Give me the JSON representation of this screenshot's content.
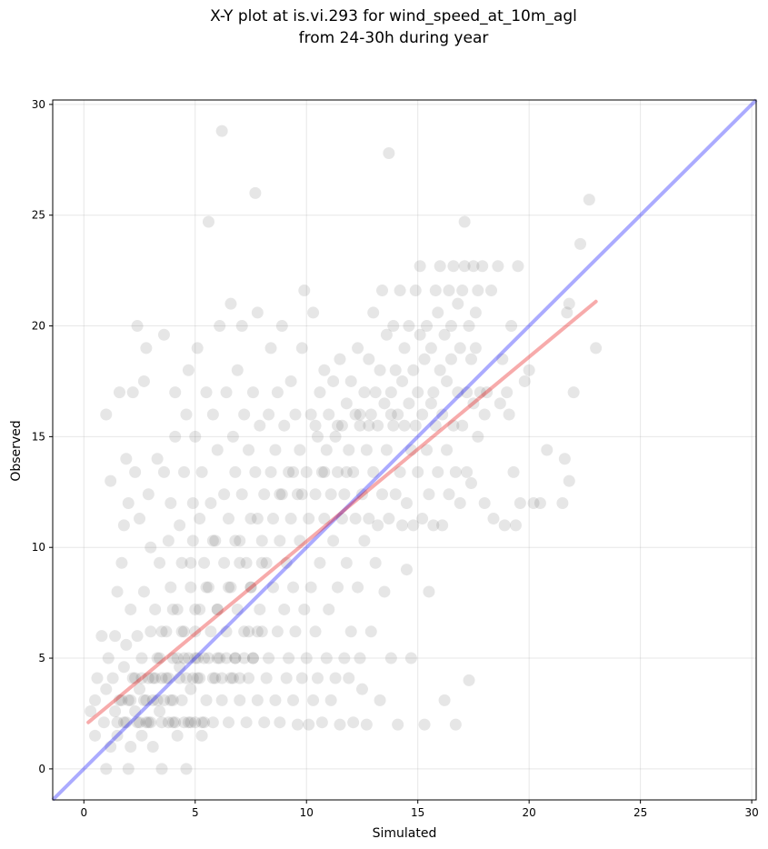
{
  "chart_data": {
    "type": "scatter",
    "title": [
      "X-Y plot at is.vi.293 for wind_speed_at_10m_agl",
      "from 24-30h during year"
    ],
    "xlabel": "Simulated",
    "ylabel": "Observed",
    "xlim": [
      -1.4,
      30.2
    ],
    "ylim": [
      -1.4,
      30.2
    ],
    "x_ticks": [
      0,
      5,
      10,
      15,
      20,
      25,
      30
    ],
    "y_ticks": [
      0,
      5,
      10,
      15,
      20,
      25,
      30
    ],
    "grid": true,
    "point_color": "#333333",
    "identity_line": {
      "x": [
        -1.4,
        30.2
      ],
      "y": [
        -1.4,
        30.2
      ],
      "color": "#0000ff"
    },
    "regression_line": {
      "x": [
        0.2,
        23.0
      ],
      "y": [
        2.1,
        21.1
      ],
      "color": "#e60000"
    },
    "points": [
      [
        0.3,
        2.6
      ],
      [
        0.5,
        1.5
      ],
      [
        0.5,
        3.1
      ],
      [
        0.6,
        4.1
      ],
      [
        0.8,
        6.0
      ],
      [
        0.9,
        2.1
      ],
      [
        1.0,
        3.6
      ],
      [
        1.0,
        16.0
      ],
      [
        1.0,
        0.0
      ],
      [
        1.1,
        5.0
      ],
      [
        1.2,
        1.0
      ],
      [
        1.2,
        13.0
      ],
      [
        1.3,
        4.1
      ],
      [
        1.4,
        2.6
      ],
      [
        1.4,
        6.0
      ],
      [
        1.5,
        8.0
      ],
      [
        1.5,
        1.5
      ],
      [
        1.6,
        3.1
      ],
      [
        1.6,
        17.0
      ],
      [
        1.7,
        9.3
      ],
      [
        1.8,
        2.1
      ],
      [
        1.8,
        4.6
      ],
      [
        1.8,
        11.0
      ],
      [
        1.9,
        14.0
      ],
      [
        1.9,
        5.6
      ],
      [
        2.0,
        12.0
      ],
      [
        2.0,
        3.1
      ],
      [
        2.0,
        0.0
      ],
      [
        2.1,
        1.0
      ],
      [
        2.1,
        7.2
      ],
      [
        2.2,
        4.1
      ],
      [
        2.2,
        17.0
      ],
      [
        2.3,
        2.6
      ],
      [
        2.3,
        13.4
      ],
      [
        2.4,
        6.0
      ],
      [
        2.4,
        20.0
      ],
      [
        2.5,
        3.6
      ],
      [
        2.5,
        11.3
      ],
      [
        2.6,
        5.0
      ],
      [
        2.6,
        1.5
      ],
      [
        2.7,
        8.0
      ],
      [
        2.7,
        17.5
      ],
      [
        2.8,
        19.0
      ],
      [
        2.8,
        2.1
      ],
      [
        2.9,
        4.1
      ],
      [
        2.9,
        12.4
      ],
      [
        3.0,
        6.2
      ],
      [
        3.0,
        10.0
      ],
      [
        3.1,
        3.1
      ],
      [
        3.1,
        1.0
      ],
      [
        3.2,
        7.2
      ],
      [
        3.3,
        5.0
      ],
      [
        3.3,
        14.0
      ],
      [
        3.4,
        2.6
      ],
      [
        3.4,
        9.3
      ],
      [
        3.5,
        4.1
      ],
      [
        3.5,
        0.0
      ],
      [
        3.6,
        13.4
      ],
      [
        3.6,
        19.6
      ],
      [
        3.7,
        6.2
      ],
      [
        3.8,
        2.1
      ],
      [
        3.8,
        10.3
      ],
      [
        3.9,
        8.2
      ],
      [
        3.9,
        12.0
      ],
      [
        4.0,
        5.0
      ],
      [
        4.0,
        3.1
      ],
      [
        4.1,
        15.0
      ],
      [
        4.1,
        17.0
      ],
      [
        4.2,
        7.2
      ],
      [
        4.2,
        1.5
      ],
      [
        4.3,
        11.0
      ],
      [
        4.3,
        4.6
      ],
      [
        4.4,
        6.2
      ],
      [
        4.4,
        9.3
      ],
      [
        4.5,
        2.1
      ],
      [
        4.5,
        13.4
      ],
      [
        4.6,
        16.0
      ],
      [
        4.6,
        0.0
      ],
      [
        4.7,
        5.0
      ],
      [
        4.7,
        18.0
      ],
      [
        4.8,
        3.6
      ],
      [
        4.8,
        8.2
      ],
      [
        4.9,
        12.0
      ],
      [
        4.9,
        10.3
      ],
      [
        5.0,
        6.2
      ],
      [
        5.0,
        2.1
      ],
      [
        5.0,
        15.0
      ],
      [
        5.1,
        4.1
      ],
      [
        5.1,
        19.0
      ],
      [
        5.2,
        7.2
      ],
      [
        5.2,
        11.3
      ],
      [
        5.3,
        1.5
      ],
      [
        5.3,
        13.4
      ],
      [
        5.4,
        5.0
      ],
      [
        5.4,
        9.3
      ],
      [
        5.5,
        3.1
      ],
      [
        5.5,
        17.0
      ],
      [
        5.6,
        8.2
      ],
      [
        5.6,
        24.7
      ],
      [
        5.7,
        6.2
      ],
      [
        5.7,
        12.0
      ],
      [
        5.8,
        2.1
      ],
      [
        5.8,
        16.0
      ],
      [
        5.9,
        4.1
      ],
      [
        5.9,
        10.3
      ],
      [
        6.0,
        7.2
      ],
      [
        6.0,
        14.4
      ],
      [
        6.1,
        5.0
      ],
      [
        6.1,
        20.0
      ],
      [
        6.2,
        3.1
      ],
      [
        6.2,
        28.8
      ],
      [
        6.3,
        9.3
      ],
      [
        6.3,
        12.4
      ],
      [
        6.4,
        6.2
      ],
      [
        6.4,
        17.0
      ],
      [
        6.5,
        2.1
      ],
      [
        6.5,
        11.3
      ],
      [
        6.6,
        8.2
      ],
      [
        6.6,
        21.0
      ],
      [
        6.7,
        4.1
      ],
      [
        6.7,
        15.0
      ],
      [
        6.8,
        5.0
      ],
      [
        6.8,
        13.4
      ],
      [
        6.9,
        7.2
      ],
      [
        6.9,
        18.0
      ],
      [
        7.0,
        3.1
      ],
      [
        7.0,
        10.3
      ],
      [
        7.1,
        12.4
      ],
      [
        7.1,
        20.0
      ],
      [
        7.2,
        6.2
      ],
      [
        7.2,
        16.0
      ],
      [
        7.3,
        2.1
      ],
      [
        7.3,
        9.3
      ],
      [
        7.4,
        4.1
      ],
      [
        7.4,
        14.4
      ],
      [
        7.5,
        8.2
      ],
      [
        7.5,
        11.3
      ],
      [
        7.6,
        5.0
      ],
      [
        7.6,
        17.0
      ],
      [
        7.7,
        26.0
      ],
      [
        7.7,
        13.4
      ],
      [
        7.8,
        3.1
      ],
      [
        7.8,
        20.6
      ],
      [
        7.9,
        7.2
      ],
      [
        7.9,
        15.5
      ],
      [
        8.0,
        10.3
      ],
      [
        8.0,
        6.2
      ],
      [
        8.1,
        2.1
      ],
      [
        8.1,
        12.4
      ],
      [
        8.2,
        4.1
      ],
      [
        8.2,
        9.3
      ],
      [
        8.3,
        16.0
      ],
      [
        8.3,
        5.0
      ],
      [
        8.4,
        13.4
      ],
      [
        8.4,
        19.0
      ],
      [
        8.5,
        8.2
      ],
      [
        8.5,
        11.3
      ],
      [
        8.6,
        3.1
      ],
      [
        8.6,
        14.4
      ],
      [
        8.7,
        6.2
      ],
      [
        8.7,
        17.0
      ],
      [
        8.8,
        2.1
      ],
      [
        8.8,
        10.3
      ],
      [
        8.9,
        12.4
      ],
      [
        8.9,
        20.0
      ],
      [
        9.0,
        7.2
      ],
      [
        9.0,
        15.5
      ],
      [
        9.1,
        4.1
      ],
      [
        9.1,
        9.3
      ],
      [
        9.2,
        5.0
      ],
      [
        9.2,
        13.4
      ],
      [
        9.3,
        11.3
      ],
      [
        9.3,
        17.5
      ],
      [
        9.4,
        3.1
      ],
      [
        9.4,
        8.2
      ],
      [
        9.5,
        16.0
      ],
      [
        9.5,
        6.2
      ],
      [
        9.6,
        2.0
      ],
      [
        9.6,
        12.4
      ],
      [
        9.7,
        10.3
      ],
      [
        9.7,
        14.4
      ],
      [
        9.8,
        4.1
      ],
      [
        9.8,
        19.0
      ],
      [
        9.9,
        7.2
      ],
      [
        9.9,
        21.6
      ],
      [
        10.0,
        5.0
      ],
      [
        10.0,
        13.4
      ],
      [
        10.1,
        2.0
      ],
      [
        10.1,
        11.3
      ],
      [
        10.2,
        16.0
      ],
      [
        10.2,
        8.2
      ],
      [
        10.3,
        3.1
      ],
      [
        10.3,
        20.6
      ],
      [
        10.4,
        12.4
      ],
      [
        10.4,
        6.2
      ],
      [
        10.5,
        15.0
      ],
      [
        10.5,
        4.1
      ],
      [
        10.6,
        17.0
      ],
      [
        10.6,
        9.3
      ],
      [
        10.7,
        13.4
      ],
      [
        10.7,
        2.1
      ],
      [
        10.8,
        11.3
      ],
      [
        10.8,
        18.0
      ],
      [
        10.9,
        5.0
      ],
      [
        10.9,
        14.4
      ],
      [
        11.0,
        7.2
      ],
      [
        11.0,
        16.0
      ],
      [
        11.1,
        3.1
      ],
      [
        11.1,
        12.4
      ],
      [
        11.2,
        10.3
      ],
      [
        11.2,
        17.5
      ],
      [
        11.3,
        4.1
      ],
      [
        11.3,
        15.0
      ],
      [
        11.4,
        13.4
      ],
      [
        11.4,
        8.2
      ],
      [
        11.5,
        2.0
      ],
      [
        11.5,
        18.5
      ],
      [
        11.6,
        11.3
      ],
      [
        11.6,
        15.5
      ],
      [
        11.7,
        5.0
      ],
      [
        11.7,
        12.4
      ],
      [
        11.8,
        9.3
      ],
      [
        11.8,
        16.5
      ],
      [
        11.9,
        4.1
      ],
      [
        11.9,
        14.4
      ],
      [
        12.0,
        6.2
      ],
      [
        12.0,
        17.5
      ],
      [
        12.1,
        13.4
      ],
      [
        12.1,
        2.1
      ],
      [
        12.2,
        11.3
      ],
      [
        12.2,
        16.0
      ],
      [
        12.3,
        8.2
      ],
      [
        12.3,
        19.0
      ],
      [
        12.4,
        5.0
      ],
      [
        12.4,
        15.5
      ],
      [
        12.5,
        12.4
      ],
      [
        12.5,
        3.6
      ],
      [
        12.6,
        17.0
      ],
      [
        12.6,
        10.3
      ],
      [
        12.7,
        14.4
      ],
      [
        12.7,
        2.0
      ],
      [
        12.8,
        18.5
      ],
      [
        12.8,
        11.3
      ],
      [
        12.9,
        16.0
      ],
      [
        12.9,
        6.2
      ],
      [
        13.0,
        13.4
      ],
      [
        13.0,
        20.6
      ],
      [
        13.1,
        9.3
      ],
      [
        13.1,
        17.0
      ],
      [
        13.2,
        15.5
      ],
      [
        13.2,
        11.0
      ],
      [
        13.3,
        3.1
      ],
      [
        13.3,
        18.0
      ],
      [
        13.4,
        12.4
      ],
      [
        13.4,
        21.6
      ],
      [
        13.5,
        16.5
      ],
      [
        13.5,
        8.0
      ],
      [
        13.6,
        14.4
      ],
      [
        13.6,
        19.6
      ],
      [
        13.7,
        27.8
      ],
      [
        13.7,
        11.3
      ],
      [
        13.8,
        17.0
      ],
      [
        13.8,
        5.0
      ],
      [
        13.9,
        15.5
      ],
      [
        13.9,
        20.0
      ],
      [
        14.0,
        12.4
      ],
      [
        14.0,
        18.0
      ],
      [
        14.1,
        16.0
      ],
      [
        14.1,
        2.0
      ],
      [
        14.2,
        13.4
      ],
      [
        14.2,
        21.6
      ],
      [
        14.3,
        11.0
      ],
      [
        14.3,
        17.5
      ],
      [
        14.4,
        19.0
      ],
      [
        14.4,
        15.5
      ],
      [
        14.5,
        9.0
      ],
      [
        14.5,
        12.0
      ],
      [
        14.6,
        16.5
      ],
      [
        14.6,
        20.0
      ],
      [
        14.7,
        14.4
      ],
      [
        14.7,
        5.0
      ],
      [
        14.8,
        18.0
      ],
      [
        14.8,
        11.0
      ],
      [
        14.9,
        15.5
      ],
      [
        14.9,
        21.6
      ],
      [
        15.0,
        13.4
      ],
      [
        15.0,
        17.0
      ],
      [
        15.1,
        19.6
      ],
      [
        15.1,
        22.7
      ],
      [
        15.2,
        11.3
      ],
      [
        15.2,
        16.0
      ],
      [
        15.3,
        2.0
      ],
      [
        15.3,
        18.5
      ],
      [
        15.4,
        14.4
      ],
      [
        15.4,
        20.0
      ],
      [
        15.5,
        12.4
      ],
      [
        15.5,
        8.0
      ],
      [
        15.6,
        16.5
      ],
      [
        15.6,
        19.0
      ],
      [
        15.7,
        11.0
      ],
      [
        15.7,
        17.0
      ],
      [
        15.8,
        21.6
      ],
      [
        15.8,
        15.5
      ],
      [
        15.9,
        20.6
      ],
      [
        15.9,
        13.4
      ],
      [
        16.0,
        18.0
      ],
      [
        16.0,
        22.7
      ],
      [
        16.1,
        11.0
      ],
      [
        16.1,
        16.0
      ],
      [
        16.2,
        19.6
      ],
      [
        16.2,
        3.1
      ],
      [
        16.3,
        14.4
      ],
      [
        16.3,
        17.5
      ],
      [
        16.4,
        21.6
      ],
      [
        16.4,
        12.4
      ],
      [
        16.5,
        18.5
      ],
      [
        16.5,
        20.0
      ],
      [
        16.6,
        15.5
      ],
      [
        16.6,
        22.7
      ],
      [
        16.7,
        13.4
      ],
      [
        16.7,
        2.0
      ],
      [
        16.8,
        21.0
      ],
      [
        16.8,
        17.0
      ],
      [
        16.9,
        12.0
      ],
      [
        16.9,
        19.0
      ],
      [
        17.0,
        21.6
      ],
      [
        17.0,
        15.5
      ],
      [
        17.1,
        22.7
      ],
      [
        17.1,
        24.7
      ],
      [
        17.2,
        13.4
      ],
      [
        17.2,
        17.0
      ],
      [
        17.3,
        20.0
      ],
      [
        17.3,
        4.0
      ],
      [
        17.4,
        12.9
      ],
      [
        17.4,
        18.5
      ],
      [
        17.5,
        22.7
      ],
      [
        17.5,
        16.5
      ],
      [
        17.6,
        19.0
      ],
      [
        17.6,
        20.6
      ],
      [
        17.7,
        15.0
      ],
      [
        17.7,
        21.6
      ],
      [
        17.8,
        17.0
      ],
      [
        17.9,
        22.7
      ],
      [
        18.0,
        16.0
      ],
      [
        18.0,
        12.0
      ],
      [
        18.1,
        17.0
      ],
      [
        18.3,
        21.6
      ],
      [
        18.4,
        11.3
      ],
      [
        18.6,
        22.7
      ],
      [
        18.7,
        16.5
      ],
      [
        18.8,
        18.5
      ],
      [
        18.9,
        11.0
      ],
      [
        19.0,
        17.0
      ],
      [
        19.1,
        16.0
      ],
      [
        19.2,
        20.0
      ],
      [
        19.3,
        13.4
      ],
      [
        19.4,
        11.0
      ],
      [
        19.5,
        22.7
      ],
      [
        19.6,
        12.0
      ],
      [
        19.8,
        17.5
      ],
      [
        20.0,
        18.0
      ],
      [
        20.2,
        12.0
      ],
      [
        20.5,
        12.0
      ],
      [
        20.8,
        14.4
      ],
      [
        21.5,
        12.0
      ],
      [
        21.6,
        14.0
      ],
      [
        21.7,
        20.6
      ],
      [
        21.8,
        13.0
      ],
      [
        21.8,
        21.0
      ],
      [
        22.0,
        17.0
      ],
      [
        22.3,
        23.7
      ],
      [
        22.7,
        25.7
      ],
      [
        23.0,
        19.0
      ],
      [
        1.5,
        2.1
      ],
      [
        1.7,
        3.1
      ],
      [
        1.9,
        2.1
      ],
      [
        2.1,
        3.1
      ],
      [
        2.3,
        4.1
      ],
      [
        2.5,
        2.1
      ],
      [
        2.7,
        3.1
      ],
      [
        2.9,
        2.1
      ],
      [
        3.1,
        4.1
      ],
      [
        3.3,
        3.1
      ],
      [
        3.5,
        2.1
      ],
      [
        3.7,
        4.1
      ],
      [
        3.9,
        3.1
      ],
      [
        4.1,
        2.1
      ],
      [
        4.3,
        4.1
      ],
      [
        4.5,
        5.0
      ],
      [
        4.7,
        2.1
      ],
      [
        4.9,
        4.1
      ],
      [
        5.1,
        5.0
      ],
      [
        5.3,
        2.1
      ],
      [
        2.4,
        2.1
      ],
      [
        2.6,
        4.1
      ],
      [
        2.8,
        3.1
      ],
      [
        3.0,
        2.1
      ],
      [
        3.2,
        4.1
      ],
      [
        3.4,
        5.0
      ],
      [
        3.6,
        3.1
      ],
      [
        3.8,
        4.1
      ],
      [
        4.0,
        2.1
      ],
      [
        4.2,
        5.0
      ],
      [
        4.4,
        3.1
      ],
      [
        4.6,
        4.1
      ],
      [
        4.8,
        2.1
      ],
      [
        5.0,
        5.0
      ],
      [
        5.2,
        4.1
      ],
      [
        5.4,
        2.1
      ],
      [
        5.6,
        5.0
      ],
      [
        5.8,
        4.1
      ],
      [
        6.0,
        5.0
      ],
      [
        6.2,
        4.1
      ],
      [
        6.4,
        5.0
      ],
      [
        6.6,
        4.1
      ],
      [
        6.8,
        5.0
      ],
      [
        7.0,
        4.1
      ],
      [
        7.2,
        5.0
      ],
      [
        7.4,
        6.2
      ],
      [
        7.6,
        5.0
      ],
      [
        7.8,
        6.2
      ],
      [
        3.5,
        6.2
      ],
      [
        4.0,
        7.2
      ],
      [
        4.5,
        6.2
      ],
      [
        5.0,
        7.2
      ],
      [
        5.5,
        8.2
      ],
      [
        6.0,
        7.2
      ],
      [
        6.5,
        8.2
      ],
      [
        7.0,
        9.3
      ],
      [
        7.5,
        8.2
      ],
      [
        8.0,
        9.3
      ],
      [
        4.8,
        9.3
      ],
      [
        5.8,
        10.3
      ],
      [
        6.8,
        10.3
      ],
      [
        7.8,
        11.3
      ],
      [
        8.8,
        12.4
      ],
      [
        9.8,
        12.4
      ],
      [
        10.8,
        13.4
      ],
      [
        11.8,
        13.4
      ],
      [
        12.8,
        15.5
      ],
      [
        13.8,
        16.0
      ],
      [
        9.4,
        13.4
      ],
      [
        10.4,
        15.5
      ],
      [
        11.4,
        15.5
      ],
      [
        12.4,
        16.0
      ]
    ]
  }
}
